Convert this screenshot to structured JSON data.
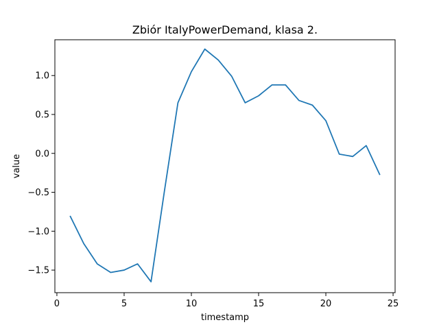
{
  "chart_data": {
    "type": "line",
    "title": "Zbiór ItalyPowerDemand, klasa 2.",
    "xlabel": "timestamp",
    "ylabel": "value",
    "xlim": [
      -0.15,
      25.15
    ],
    "ylim": [
      -1.79,
      1.46
    ],
    "x_ticks": [
      0,
      5,
      10,
      15,
      20,
      25
    ],
    "y_ticks": [
      -1.5,
      -1.0,
      -0.5,
      0.0,
      0.5,
      1.0
    ],
    "x_tick_labels": [
      "0",
      "5",
      "10",
      "15",
      "20",
      "25"
    ],
    "y_tick_labels": [
      "−1.5",
      "−1.0",
      "−0.5",
      "0.0",
      "0.5",
      "1.0"
    ],
    "grid": false,
    "series": [
      {
        "color": "#1f77b4",
        "x": [
          1,
          2,
          3,
          4,
          5,
          6,
          7,
          8,
          9,
          10,
          11,
          12,
          13,
          14,
          15,
          16,
          17,
          18,
          19,
          20,
          21,
          22,
          23,
          24
        ],
        "values": [
          -0.81,
          -1.16,
          -1.42,
          -1.53,
          -1.5,
          -1.42,
          -1.65,
          -0.48,
          0.65,
          1.05,
          1.34,
          1.2,
          0.99,
          0.65,
          0.74,
          0.88,
          0.88,
          0.68,
          0.62,
          0.42,
          -0.01,
          -0.04,
          0.1,
          -0.27
        ]
      }
    ]
  }
}
